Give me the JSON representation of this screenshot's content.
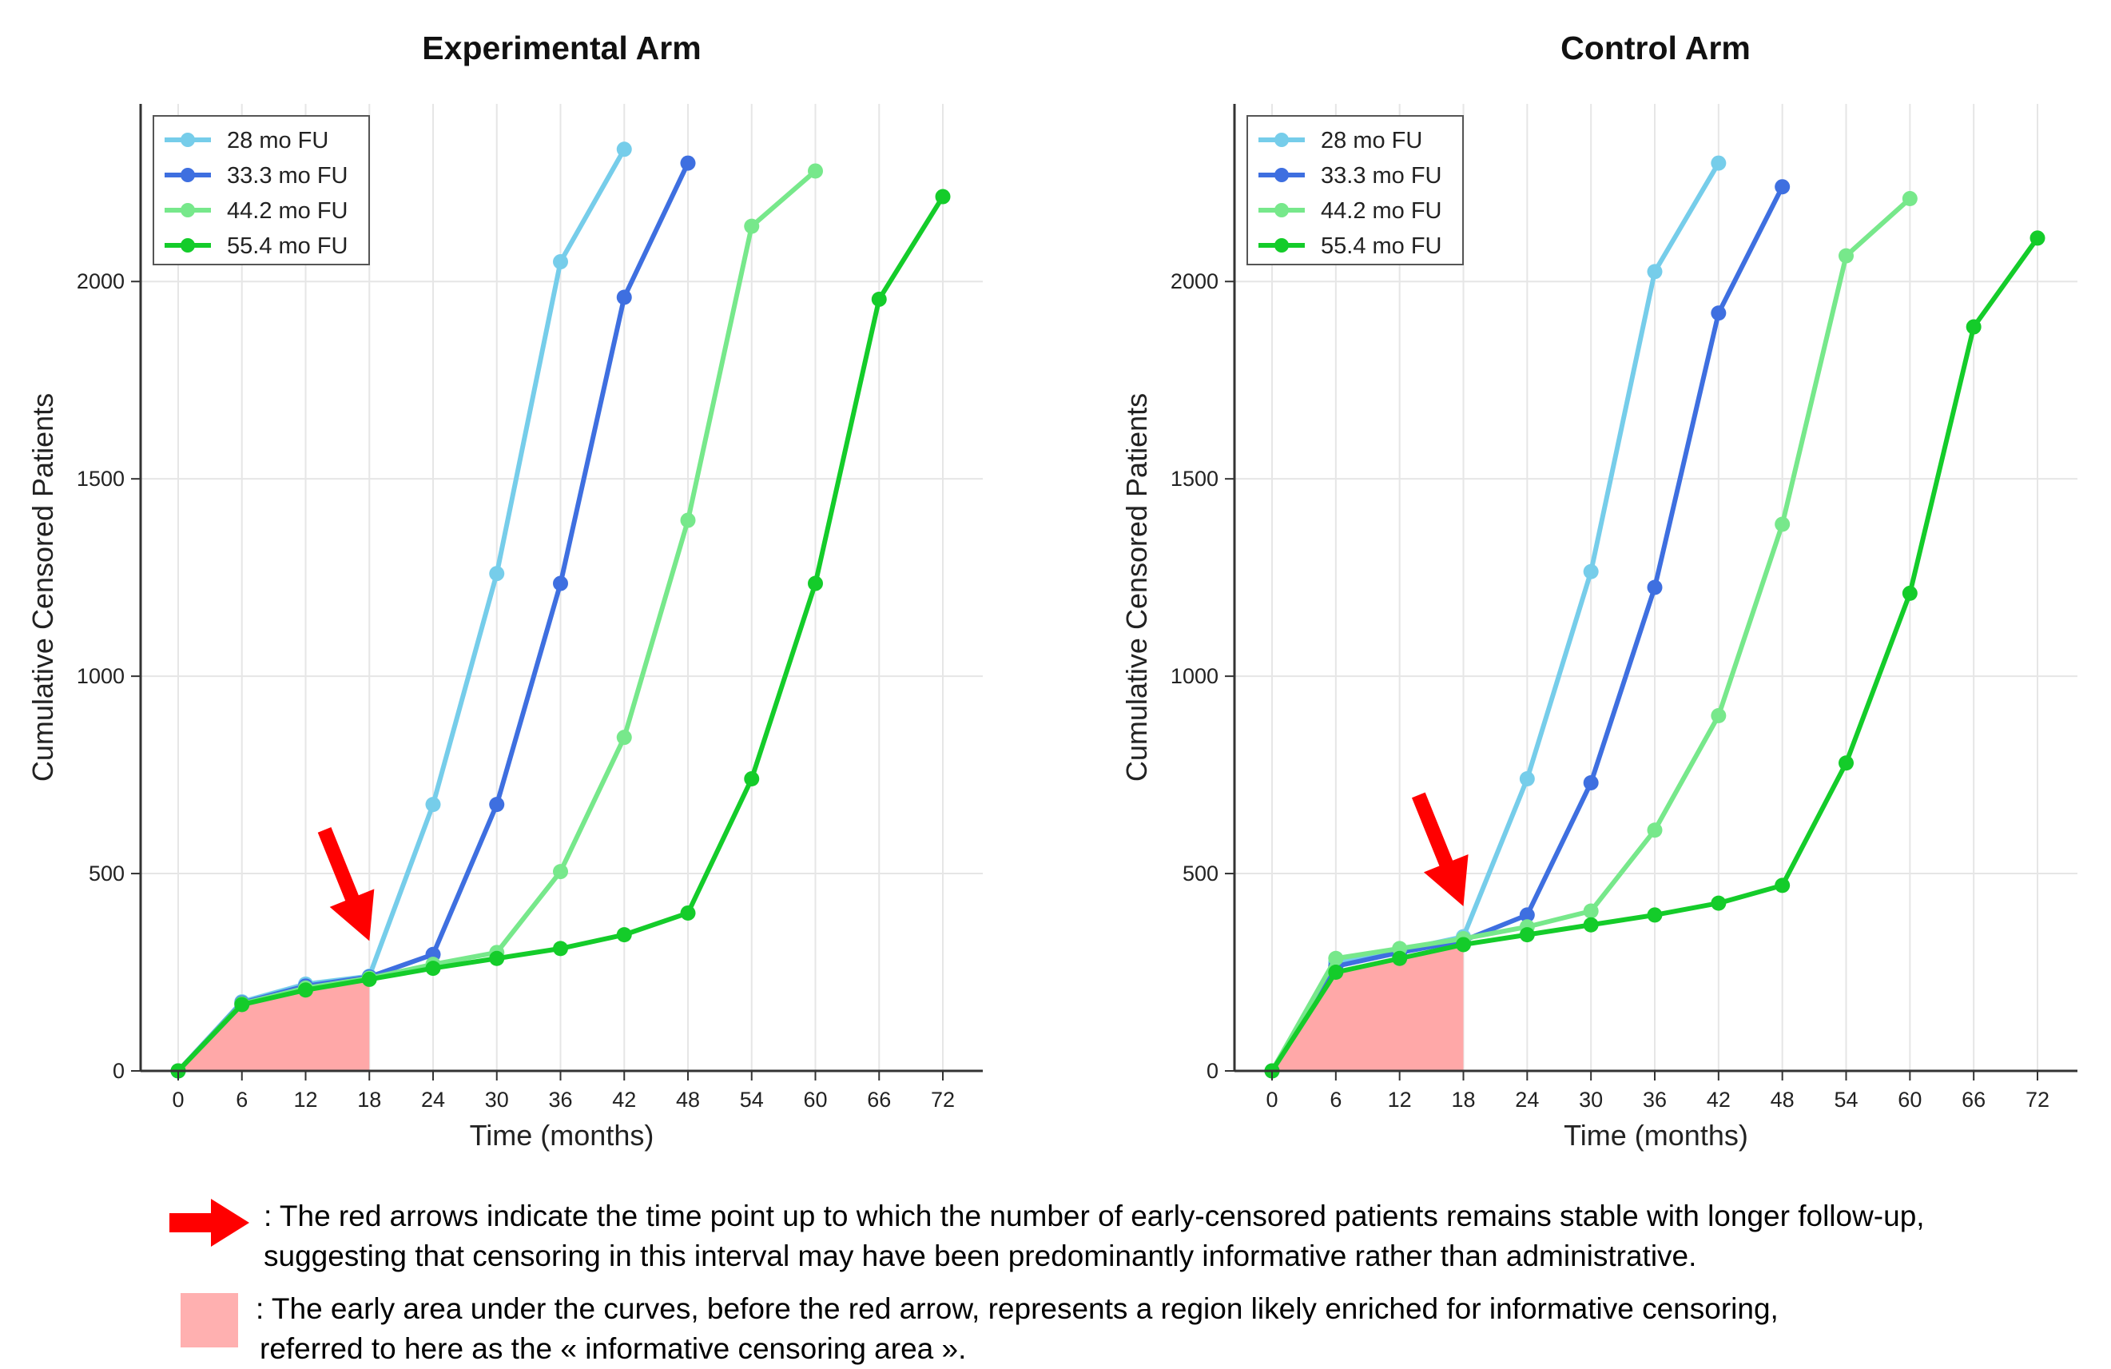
{
  "x_ticks": [
    "0",
    "6",
    "12",
    "18",
    "24",
    "30",
    "36",
    "42",
    "48",
    "54",
    "60",
    "66",
    "72"
  ],
  "y_ticks": [
    "0",
    "500",
    "1000",
    "1500",
    "2000"
  ],
  "colors": {
    "area": "#ffa8a8",
    "arrow": "#ff0000",
    "axis": "#333333",
    "grid": "#e6e6e6"
  },
  "chart_data": [
    {
      "type": "line",
      "title": "Experimental Arm",
      "xlabel": "Time (months)",
      "ylabel": "Cumulative Censored Patients",
      "xlim": [
        0,
        72
      ],
      "ylim": [
        0,
        2450
      ],
      "grid": true,
      "legend_placement": "top-left",
      "shaded_area_until_x": 18,
      "arrow_at_x": 18,
      "series": [
        {
          "name": "28 mo FU",
          "color": "#76cdea",
          "x": [
            0,
            6,
            12,
            18,
            24,
            30,
            36,
            42
          ],
          "y": [
            0,
            175,
            220,
            240,
            675,
            1260,
            2050,
            2335
          ]
        },
        {
          "name": "33.3 mo FU",
          "color": "#3e6fe0",
          "x": [
            0,
            6,
            12,
            18,
            24,
            30,
            36,
            42,
            48
          ],
          "y": [
            0,
            172,
            215,
            238,
            295,
            675,
            1235,
            1960,
            2300
          ]
        },
        {
          "name": "44.2 mo FU",
          "color": "#77e88b",
          "x": [
            0,
            6,
            12,
            18,
            24,
            30,
            36,
            42,
            48,
            54,
            60
          ],
          "y": [
            0,
            170,
            210,
            235,
            270,
            300,
            505,
            845,
            1395,
            2140,
            2280
          ]
        },
        {
          "name": "55.4 mo FU",
          "color": "#14cc2a",
          "x": [
            0,
            6,
            12,
            18,
            24,
            30,
            36,
            42,
            48,
            54,
            60,
            66,
            72
          ],
          "y": [
            0,
            168,
            205,
            232,
            260,
            285,
            310,
            345,
            400,
            740,
            1235,
            1955,
            2215
          ]
        }
      ]
    },
    {
      "type": "line",
      "title": "Control Arm",
      "xlabel": "Time (months)",
      "ylabel": "Cumulative Censored Patients",
      "xlim": [
        0,
        72
      ],
      "ylim": [
        0,
        2450
      ],
      "grid": true,
      "legend_placement": "top-left",
      "shaded_area_until_x": 18,
      "arrow_at_x": 18,
      "series": [
        {
          "name": "28 mo FU",
          "color": "#76cdea",
          "x": [
            0,
            6,
            12,
            18,
            24,
            30,
            36,
            42
          ],
          "y": [
            0,
            275,
            305,
            340,
            740,
            1265,
            2025,
            2300
          ]
        },
        {
          "name": "33.3 mo FU",
          "color": "#3e6fe0",
          "x": [
            0,
            6,
            12,
            18,
            24,
            30,
            36,
            42,
            48
          ],
          "y": [
            0,
            265,
            300,
            330,
            395,
            730,
            1225,
            1920,
            2240
          ]
        },
        {
          "name": "44.2 mo FU",
          "color": "#77e88b",
          "x": [
            0,
            6,
            12,
            18,
            24,
            30,
            36,
            42,
            48,
            54,
            60
          ],
          "y": [
            0,
            285,
            310,
            335,
            365,
            405,
            610,
            900,
            1385,
            2065,
            2210
          ]
        },
        {
          "name": "55.4 mo FU",
          "color": "#14cc2a",
          "x": [
            0,
            6,
            12,
            18,
            24,
            30,
            36,
            42,
            48,
            54,
            60,
            66,
            72
          ],
          "y": [
            0,
            250,
            285,
            320,
            345,
            370,
            395,
            425,
            470,
            780,
            1210,
            1885,
            2110
          ]
        }
      ]
    }
  ],
  "notes": {
    "arrow_line1": ": The red arrows indicate the time point up to which the number of early-censored patients remains stable with longer follow-up,",
    "arrow_line2": "suggesting that censoring in this interval may have been predominantly informative rather than administrative.",
    "area_line1": ": The early area under the curves, before the red arrow, represents a region likely enriched for informative censoring,",
    "area_line2": "referred to here as the « informative censoring area »."
  }
}
